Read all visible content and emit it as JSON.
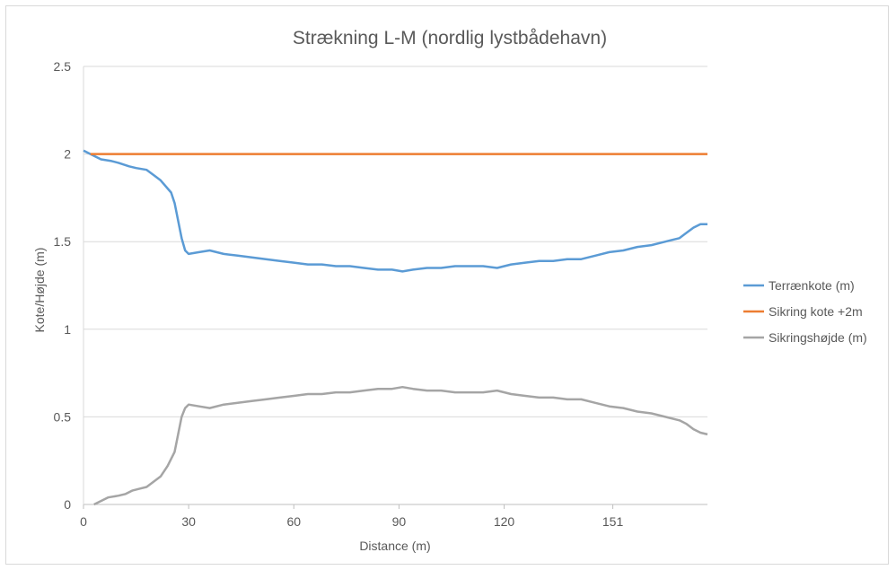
{
  "chart_data": {
    "type": "line",
    "title": "Strækning L-M (nordlig lystbådehavn)",
    "xlabel": "Distance (m)",
    "ylabel": "Kote/Højde (m)",
    "xlim": [
      0,
      178
    ],
    "ylim": [
      0,
      2.5
    ],
    "x_ticks": [
      0,
      30,
      60,
      90,
      120,
      151
    ],
    "x_tick_labels": [
      "0",
      "30",
      "60",
      "90",
      "120",
      "151"
    ],
    "y_ticks": [
      0,
      0.5,
      1,
      1.5,
      2,
      2.5
    ],
    "y_tick_labels": [
      "0",
      "0.5",
      "1",
      "1.5",
      "2",
      "2.5"
    ],
    "grid": "horizontal",
    "legend_position": "right",
    "series": [
      {
        "name": "Terrænkote (m)",
        "color": "#5b9bd5",
        "x": [
          0,
          3,
          5,
          8,
          10,
          13,
          15,
          18,
          20,
          22,
          25,
          26,
          27,
          28,
          29,
          30,
          33,
          36,
          40,
          44,
          48,
          52,
          56,
          60,
          64,
          68,
          72,
          76,
          80,
          84,
          88,
          91,
          94,
          98,
          102,
          106,
          110,
          114,
          118,
          122,
          126,
          130,
          134,
          138,
          142,
          146,
          150,
          154,
          158,
          162,
          166,
          168,
          170,
          172,
          174,
          176,
          178
        ],
        "y": [
          2.02,
          1.99,
          1.97,
          1.96,
          1.95,
          1.93,
          1.92,
          1.91,
          1.88,
          1.85,
          1.78,
          1.72,
          1.62,
          1.52,
          1.45,
          1.43,
          1.44,
          1.45,
          1.43,
          1.42,
          1.41,
          1.4,
          1.39,
          1.38,
          1.37,
          1.37,
          1.36,
          1.36,
          1.35,
          1.34,
          1.34,
          1.33,
          1.34,
          1.35,
          1.35,
          1.36,
          1.36,
          1.36,
          1.35,
          1.37,
          1.38,
          1.39,
          1.39,
          1.4,
          1.4,
          1.42,
          1.44,
          1.45,
          1.47,
          1.48,
          1.5,
          1.51,
          1.52,
          1.55,
          1.58,
          1.6,
          1.6
        ]
      },
      {
        "name": "Sikring kote +2m",
        "color": "#ed7d31",
        "x": [
          2,
          178
        ],
        "y": [
          2,
          2
        ]
      },
      {
        "name": "Sikringshøjde (m)",
        "color": "#a5a5a5",
        "x": [
          3,
          5,
          7,
          10,
          12,
          14,
          16,
          18,
          20,
          22,
          24,
          26,
          27,
          28,
          29,
          30,
          33,
          36,
          40,
          44,
          48,
          52,
          56,
          60,
          64,
          68,
          72,
          76,
          80,
          84,
          88,
          91,
          94,
          98,
          102,
          106,
          110,
          114,
          118,
          122,
          126,
          130,
          134,
          138,
          142,
          146,
          150,
          154,
          158,
          162,
          166,
          170,
          172,
          174,
          176,
          178
        ],
        "y": [
          0.0,
          0.02,
          0.04,
          0.05,
          0.06,
          0.08,
          0.09,
          0.1,
          0.13,
          0.16,
          0.22,
          0.3,
          0.4,
          0.5,
          0.55,
          0.57,
          0.56,
          0.55,
          0.57,
          0.58,
          0.59,
          0.6,
          0.61,
          0.62,
          0.63,
          0.63,
          0.64,
          0.64,
          0.65,
          0.66,
          0.66,
          0.67,
          0.66,
          0.65,
          0.65,
          0.64,
          0.64,
          0.64,
          0.65,
          0.63,
          0.62,
          0.61,
          0.61,
          0.6,
          0.6,
          0.58,
          0.56,
          0.55,
          0.53,
          0.52,
          0.5,
          0.48,
          0.46,
          0.43,
          0.41,
          0.4
        ]
      }
    ]
  }
}
